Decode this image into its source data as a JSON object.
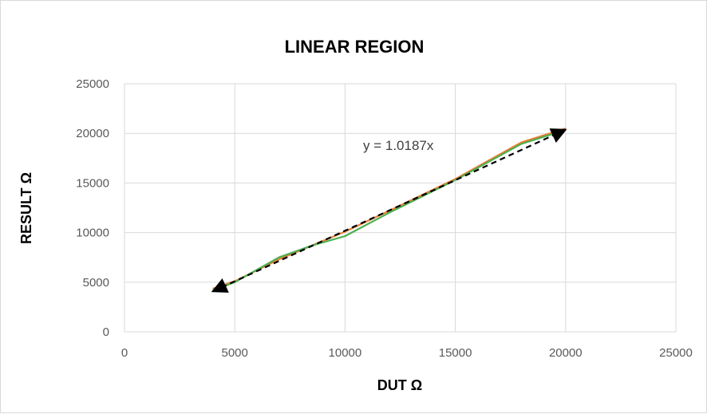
{
  "chart_data": {
    "type": "line",
    "title": "LINEAR REGION",
    "xlabel": "DUT Ω",
    "ylabel": "RESULT Ω",
    "xlim": [
      0,
      25000
    ],
    "ylim": [
      0,
      25000
    ],
    "x_ticks": [
      "0",
      "5000",
      "10000",
      "15000",
      "20000",
      "25000"
    ],
    "y_ticks": [
      "0",
      "5000",
      "10000",
      "15000",
      "20000",
      "25000"
    ],
    "grid": true,
    "legend": "none",
    "series": [
      {
        "color": "#ed7d31",
        "points": [
          [
            4000,
            4350
          ],
          [
            5000,
            5100
          ],
          [
            7000,
            7300
          ],
          [
            10000,
            10100
          ],
          [
            12000,
            12200
          ],
          [
            15000,
            15400
          ],
          [
            18000,
            19100
          ],
          [
            20000,
            20500
          ]
        ]
      },
      {
        "color": "#4caf50",
        "points": [
          [
            4000,
            4200
          ],
          [
            5000,
            5000
          ],
          [
            7000,
            7500
          ],
          [
            8500,
            8700
          ],
          [
            10000,
            9650
          ],
          [
            12000,
            12000
          ],
          [
            15000,
            15300
          ],
          [
            18000,
            18950
          ],
          [
            20000,
            20350
          ]
        ]
      }
    ],
    "trendline": {
      "color": "#000000",
      "style": "dashed",
      "slope": 1.0187,
      "x_range": [
        4000,
        20000
      ],
      "equation": "y = 1.0187x"
    }
  }
}
